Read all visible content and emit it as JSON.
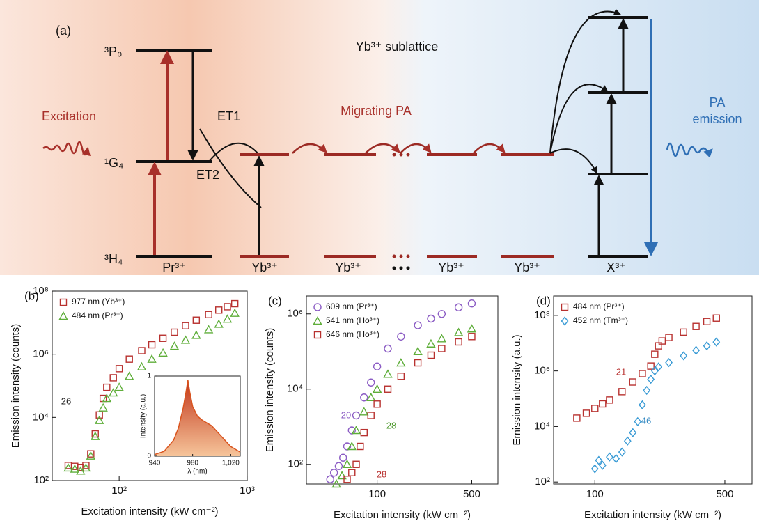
{
  "diagram": {
    "panel": "(a)",
    "level_labels": [
      "³P₀",
      "¹G₄",
      "³H₄"
    ],
    "excitation": "Excitation",
    "et1": "ET1",
    "et2": "ET2",
    "migrating": "Migrating PA",
    "sublattice": "Yb³⁺ sublattice",
    "emission": [
      "PA",
      "emission"
    ],
    "ions": [
      "Pr³⁺",
      "Yb³⁺",
      "Yb³⁺",
      "Yb³⁺",
      "Yb³⁺",
      "X³⁺"
    ]
  },
  "chart_data": [
    {
      "type": "scatter",
      "panel": "(b)",
      "xlabel": "Excitation intensity (kW cm⁻²)",
      "ylabel": "Emission intensity (counts)",
      "xlog": true,
      "ylog": true,
      "legend": "upper left",
      "xlim": [
        30,
        1000
      ],
      "ylim": [
        100,
        100000000
      ],
      "xticks": [
        {
          "value": 100,
          "label": "10²"
        },
        {
          "value": 1000,
          "label": "10³"
        }
      ],
      "yticks": [
        {
          "value": 100,
          "label": "10²"
        },
        {
          "value": 10000,
          "label": "10⁴"
        },
        {
          "value": 1000000,
          "label": "10⁶"
        },
        {
          "value": 100000000,
          "label": "10⁸"
        }
      ],
      "series": [
        {
          "name": "977 nm (Yb³⁺)",
          "color": "#b8312f",
          "marker": "square",
          "x": [
            40,
            45,
            50,
            55,
            60,
            65,
            70,
            75,
            80,
            90,
            100,
            120,
            150,
            180,
            220,
            270,
            330,
            400,
            500,
            600,
            700,
            800
          ],
          "values": [
            300,
            280,
            260,
            300,
            700,
            3000,
            12000,
            40000,
            90000,
            180000,
            350000,
            700000,
            1300000,
            2000000,
            3200000,
            5000000,
            8000000,
            12000000,
            18000000,
            25000000,
            32000000,
            40000000
          ]
        },
        {
          "name": "484 nm (Pr³⁺)",
          "color": "#5fae3a",
          "marker": "triangle",
          "x": [
            40,
            45,
            50,
            55,
            60,
            65,
            70,
            75,
            80,
            90,
            100,
            120,
            150,
            180,
            220,
            270,
            330,
            400,
            500,
            600,
            700,
            800
          ],
          "values": [
            250,
            230,
            200,
            250,
            600,
            2500,
            8000,
            20000,
            40000,
            60000,
            90000,
            200000,
            400000,
            700000,
            1100000,
            1800000,
            2800000,
            4000000,
            6000000,
            9000000,
            13000000,
            20000000
          ]
        }
      ],
      "annotations": [
        {
          "text": "26",
          "color": "#222222"
        }
      ],
      "inset": {
        "type": "area",
        "xlabel": "λ (nm)",
        "ylabel": "Intensity (a.u.)",
        "color": "#d9541e",
        "xlim": [
          940,
          1030
        ],
        "ylim": [
          0,
          1
        ],
        "xticks": [
          940,
          980,
          {
            "value": 1020,
            "label": "1,020"
          }
        ],
        "yticks": [
          0,
          1
        ],
        "x": [
          940,
          950,
          960,
          965,
          970,
          973,
          975,
          977,
          980,
          985,
          990,
          1000,
          1010,
          1020,
          1030
        ],
        "values": [
          0.02,
          0.06,
          0.2,
          0.35,
          0.6,
          0.8,
          0.95,
          0.8,
          0.62,
          0.5,
          0.45,
          0.38,
          0.25,
          0.12,
          0.05
        ]
      }
    },
    {
      "type": "scatter",
      "panel": "(c)",
      "xlabel": "Excitation intensity (kW cm⁻²)",
      "ylabel": "Emission intensity (counts)",
      "xlog": true,
      "ylog": true,
      "legend": "upper left",
      "xlim": [
        30,
        780
      ],
      "ylim": [
        30,
        3000000
      ],
      "xticks": [
        100,
        500
      ],
      "yticks": [
        {
          "value": 100,
          "label": "10²"
        },
        {
          "value": 10000,
          "label": "10⁴"
        },
        {
          "value": 1000000,
          "label": "10⁶"
        }
      ],
      "series": [
        {
          "name": "609 nm (Pr³⁺)",
          "color": "#8b5cc4",
          "marker": "circle",
          "x": [
            45,
            48,
            52,
            56,
            60,
            65,
            70,
            80,
            90,
            100,
            120,
            150,
            200,
            250,
            300,
            400,
            500
          ],
          "values": [
            40,
            60,
            90,
            150,
            300,
            800,
            2000,
            6000,
            15000,
            40000,
            120000,
            250000,
            500000,
            750000,
            1000000,
            1500000,
            1900000
          ]
        },
        {
          "name": "541 nm (Ho³⁺)",
          "color": "#5fae3a",
          "marker": "triangle",
          "x": [
            50,
            55,
            60,
            65,
            70,
            80,
            90,
            100,
            120,
            150,
            200,
            250,
            300,
            400,
            500
          ],
          "values": [
            30,
            50,
            100,
            300,
            800,
            2500,
            6000,
            10000,
            25000,
            50000,
            100000,
            160000,
            220000,
            320000,
            400000
          ]
        },
        {
          "name": "646 nm (Ho³⁺)",
          "color": "#b8312f",
          "marker": "square",
          "x": [
            60,
            65,
            70,
            75,
            80,
            90,
            100,
            120,
            150,
            200,
            250,
            300,
            400,
            500
          ],
          "values": [
            40,
            60,
            100,
            300,
            700,
            2000,
            4000,
            10000,
            22000,
            50000,
            80000,
            120000,
            180000,
            250000
          ]
        }
      ],
      "annotations": [
        {
          "text": "20",
          "color": "#8b5cc4"
        },
        {
          "text": "28",
          "color": "#4e9a2e"
        },
        {
          "text": "28",
          "color": "#b8312f"
        }
      ]
    },
    {
      "type": "scatter",
      "panel": "(d)",
      "xlabel": "Excitation intensity (kW cm⁻²)",
      "ylabel": "Emission intensity (a.u.)",
      "xlog": true,
      "ylog": true,
      "legend": "upper left",
      "xlim": [
        60,
        700
      ],
      "ylim": [
        85,
        500000000
      ],
      "xticks": [
        100,
        500
      ],
      "yticks": [
        {
          "value": 100,
          "label": "10²"
        },
        {
          "value": 10000,
          "label": "10⁴"
        },
        {
          "value": 1000000,
          "label": "10⁶"
        },
        {
          "value": 100000000,
          "label": "10⁸"
        }
      ],
      "series": [
        {
          "name": "484 nm (Pr³⁺)",
          "color": "#b8312f",
          "marker": "square",
          "x": [
            80,
            90,
            100,
            110,
            120,
            140,
            160,
            180,
            200,
            210,
            220,
            230,
            250,
            300,
            350,
            400,
            450
          ],
          "values": [
            20000,
            30000,
            45000,
            65000,
            90000,
            180000,
            400000,
            800000,
            1500000,
            4000000,
            8000000,
            12000000,
            16000000,
            25000000,
            40000000,
            60000000,
            80000000
          ]
        },
        {
          "name": "452 nm (Tm³⁺)",
          "color": "#3a9bd5",
          "marker": "diamond",
          "x": [
            100,
            105,
            110,
            120,
            130,
            140,
            150,
            160,
            170,
            180,
            190,
            200,
            210,
            220,
            250,
            300,
            350,
            400,
            450
          ],
          "values": [
            300,
            600,
            400,
            800,
            700,
            1200,
            3000,
            6000,
            15000,
            60000,
            200000,
            500000,
            1000000,
            1400000,
            2000000,
            3500000,
            5500000,
            8000000,
            11000000
          ]
        }
      ],
      "annotations": [
        {
          "text": "21",
          "color": "#b8312f"
        },
        {
          "text": "46",
          "color": "#2f86c0"
        }
      ]
    }
  ]
}
